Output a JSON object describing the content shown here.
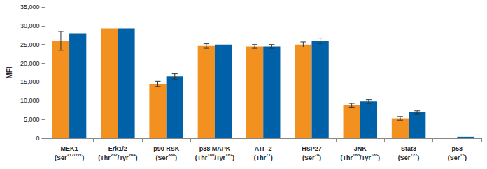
{
  "chart_data": {
    "type": "bar",
    "y_label": "MFI",
    "categories": [
      "MEK1 (Ser217/221)",
      "Erk1/2 (Thr202/Tyr204)",
      "p90 RSK (Ser380)",
      "p38 MAPK (Thr180/Tyr182)",
      "ATF-2 (Thr71)",
      "HSP27 (Ser78)",
      "JNK (Thr183/Tyr185)",
      "Stat3 (Ser727)",
      "p53 (Ser15)"
    ],
    "series": [
      {
        "color": "#f39120",
        "values": [
          26000,
          29300,
          14500,
          24600,
          24500,
          25000,
          8800,
          5300,
          0
        ],
        "errors": [
          2500,
          null,
          700,
          600,
          500,
          700,
          500,
          500,
          null
        ]
      },
      {
        "color": "#0060a8",
        "values": [
          28000,
          29300,
          16500,
          25000,
          24500,
          26000,
          9800,
          6900,
          400
        ],
        "errors": [
          null,
          null,
          700,
          null,
          500,
          700,
          500,
          400,
          null
        ]
      }
    ],
    "ylim": [
      0,
      35000
    ],
    "yticks": [
      0,
      {
        "value": 5000,
        "label": "5,000"
      },
      {
        "value": 10000,
        "label": "10,000"
      },
      {
        "value": 15000,
        "label": "15,000"
      },
      {
        "value": 20000,
        "label": "20,000"
      },
      {
        "value": 25000,
        "label": "25,000"
      },
      {
        "value": 30000,
        "label": "30,000"
      },
      {
        "value": 35000,
        "label": "35,000"
      }
    ],
    "grid": false
  }
}
